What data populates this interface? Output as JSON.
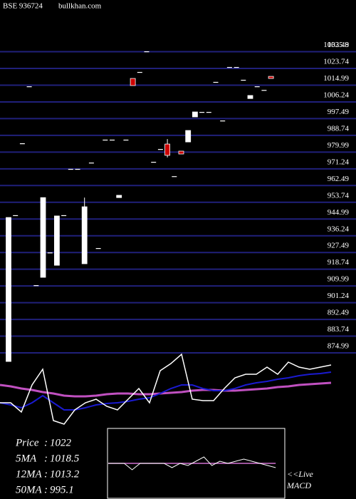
{
  "chart_data": {
    "type": "candlestick",
    "title": "BSE 936724",
    "subtitle": "bullkhan.com",
    "high_label": 1035.8,
    "ylim": [
      870,
      1040
    ],
    "yticks": [
      1032.49,
      1023.74,
      1014.99,
      1006.24,
      997.49,
      988.74,
      979.99,
      971.24,
      962.49,
      953.74,
      944.99,
      936.24,
      927.49,
      918.74,
      909.99,
      901.24,
      892.49,
      883.74,
      874.99
    ],
    "grid": true,
    "grid_color": "#20207a",
    "up_color": "#ffffff",
    "down_color": "#cc0000",
    "open": [
      870.5,
      947,
      984.6,
      1014.4,
      910.4,
      914.5,
      927.5,
      920.8,
      947,
      971.2,
      971.2,
      921.6,
      974.5,
      929.8,
      986.5,
      986.5,
      956.2,
      986.5,
      1018.5,
      1021.9,
      1032.7,
      974.9,
      981.6,
      984.2,
      967.4,
      980.5,
      985.3,
      998.4,
      1001,
      1001,
      1016.7,
      996.5,
      1024.5,
      1024.5,
      1017.8,
      1008,
      1014.4,
      1012.5,
      1019.6
    ],
    "high": [
      945.8,
      947,
      984.6,
      1014.4,
      910.4,
      956.2,
      927.5,
      946.6,
      947,
      971.2,
      971.2,
      956.2,
      974.5,
      929.8,
      986.5,
      986.5,
      957.4,
      986.5,
      1018.5,
      1021.9,
      1032.7,
      974.9,
      981.6,
      986.8,
      967.4,
      980.5,
      991.3,
      1001,
      1001,
      1001,
      1016.7,
      996.5,
      1024.5,
      1024.5,
      1017.8,
      1009.6,
      1014.4,
      1012.5,
      1019.6
    ],
    "low": [
      870.5,
      947,
      984.6,
      1014.4,
      910.4,
      914.5,
      927.5,
      920.8,
      947,
      971.2,
      971.2,
      921.6,
      974.5,
      929.8,
      986.5,
      986.5,
      956.2,
      986.5,
      1014.8,
      1021.9,
      1032.7,
      974.9,
      981.6,
      977.2,
      967.4,
      979,
      985.3,
      998.4,
      1001,
      1001,
      1016.7,
      996.5,
      1024.5,
      1024.5,
      1017.8,
      1008,
      1014.4,
      1012.5,
      1018.5
    ],
    "close": [
      945.8,
      947,
      984.6,
      1014.4,
      910.4,
      956.2,
      927.5,
      946.6,
      947,
      971.2,
      971.2,
      951.4,
      974.5,
      929.8,
      986.5,
      986.5,
      957.4,
      986.5,
      1014.8,
      1021.9,
      1032.7,
      974.9,
      981.6,
      978.3,
      967.4,
      979,
      991.3,
      1001,
      1001,
      1001,
      1016.7,
      996.5,
      1024.5,
      1024.5,
      1017.8,
      1009.6,
      1014.4,
      1012.5,
      1018.5
    ],
    "indicator_panel": {
      "ylim": [
        0,
        100
      ],
      "series": [
        {
          "color": "#c050c0",
          "values": [
            64,
            62.4,
            60,
            58.4,
            56,
            54.4,
            52,
            51.2,
            51.2,
            52,
            53.6,
            54.4,
            54.4,
            53.6,
            53.6,
            54.4,
            55.2,
            56,
            57.6,
            58.4,
            58.4,
            57.6,
            57.6,
            58.4,
            59.2,
            60,
            61.6,
            62.4,
            64,
            64.8,
            65.6,
            66.4
          ]
        },
        {
          "color": "#1a1ad0",
          "values": [
            44,
            41.6,
            38.4,
            44,
            52,
            44,
            36,
            36,
            38.4,
            41.6,
            43.2,
            44,
            45.6,
            48,
            49.6,
            54.4,
            60,
            64,
            64,
            60,
            57.6,
            57.6,
            60,
            64,
            66.4,
            68,
            70.4,
            72,
            74.4,
            76,
            76.8,
            78.4
          ]
        },
        {
          "color": "#ffffff",
          "values": [
            44,
            44,
            33.6,
            64,
            81.6,
            24,
            20,
            36,
            44,
            48,
            40,
            36,
            48,
            60,
            44,
            80,
            88,
            98.4,
            48,
            46.4,
            46.4,
            60,
            72,
            76,
            76,
            84,
            76,
            89.6,
            84,
            81.6,
            84,
            86.4
          ]
        }
      ]
    },
    "stats": [
      {
        "label": "Price",
        "value": 1022
      },
      {
        "label": "5MA",
        "value": 1018.5
      },
      {
        "label": "12MA",
        "value": 1013.2
      },
      {
        "label": "50MA",
        "value": 995.1
      }
    ],
    "macd_panel": {
      "label": "<<Live",
      "title": "MACD",
      "ylim": [
        -10,
        10
      ],
      "series": [
        {
          "color": "#d070d0",
          "values": [
            0,
            0,
            0,
            0,
            0,
            0,
            0,
            0,
            0,
            0,
            0,
            0,
            0,
            0,
            0,
            0,
            0,
            0,
            0,
            0,
            0,
            0
          ]
        },
        {
          "color": "#ffffff",
          "values": [
            0,
            0,
            0,
            -3,
            0,
            0,
            0,
            0,
            -2,
            0,
            -1,
            1,
            3,
            -1,
            1,
            0,
            1,
            2,
            1,
            0,
            -1,
            -2
          ]
        }
      ]
    }
  }
}
